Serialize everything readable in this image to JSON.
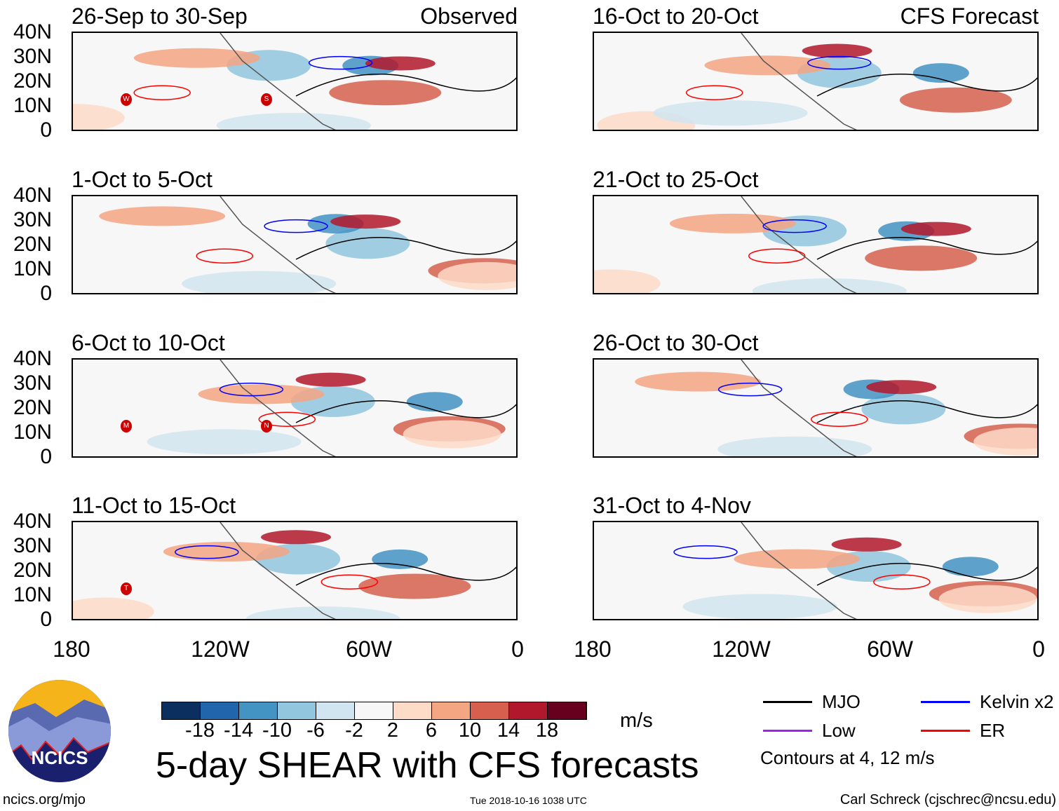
{
  "panels": [
    {
      "title": "26-Sep to 30-Sep",
      "label": "Observed",
      "storms": [
        "W",
        "S"
      ]
    },
    {
      "title": "16-Oct to 20-Oct",
      "label": "CFS Forecast",
      "storms": []
    },
    {
      "title": "1-Oct to 5-Oct",
      "label": "",
      "storms": []
    },
    {
      "title": "21-Oct to 25-Oct",
      "label": "",
      "storms": []
    },
    {
      "title": "6-Oct to 10-Oct",
      "label": "",
      "storms": [
        "M",
        "N"
      ]
    },
    {
      "title": "26-Oct to 30-Oct",
      "label": "",
      "storms": []
    },
    {
      "title": "11-Oct to 15-Oct",
      "label": "",
      "storms": [
        "T"
      ]
    },
    {
      "title": "31-Oct to 4-Nov",
      "label": "",
      "storms": []
    }
  ],
  "lat_labels": [
    "40N",
    "30N",
    "20N",
    "10N",
    "0"
  ],
  "lon_labels": [
    "180",
    "120W",
    "60W",
    "0"
  ],
  "colorbar": {
    "colors": [
      "#0b2f5e",
      "#2166ac",
      "#4393c3",
      "#92c5de",
      "#d1e5f0",
      "#f7f7f7",
      "#fddbc7",
      "#f4a582",
      "#d6604d",
      "#b2182b",
      "#67001f"
    ],
    "labels": [
      "-18",
      "-14",
      "-10",
      "-6",
      "-2",
      "2",
      "6",
      "10",
      "14",
      "18"
    ],
    "units": "m/s"
  },
  "title": "5-day SHEAR with CFS forecasts",
  "legend": [
    {
      "label": "MJO",
      "color": "#000000"
    },
    {
      "label": "Kelvin x2",
      "color": "#0000ff"
    },
    {
      "label": "Low",
      "color": "#a020f0"
    },
    {
      "label": "ER",
      "color": "#ff0000"
    }
  ],
  "contours_note": "Contours at 4, 12 m/s",
  "logo_text": "NCICS",
  "footer": {
    "url": "ncics.org/mjo",
    "timestamp": "Tue 2018-10-16 1038 UTC",
    "author": "Carl Schreck (cjschrec@ncsu.edu)"
  }
}
